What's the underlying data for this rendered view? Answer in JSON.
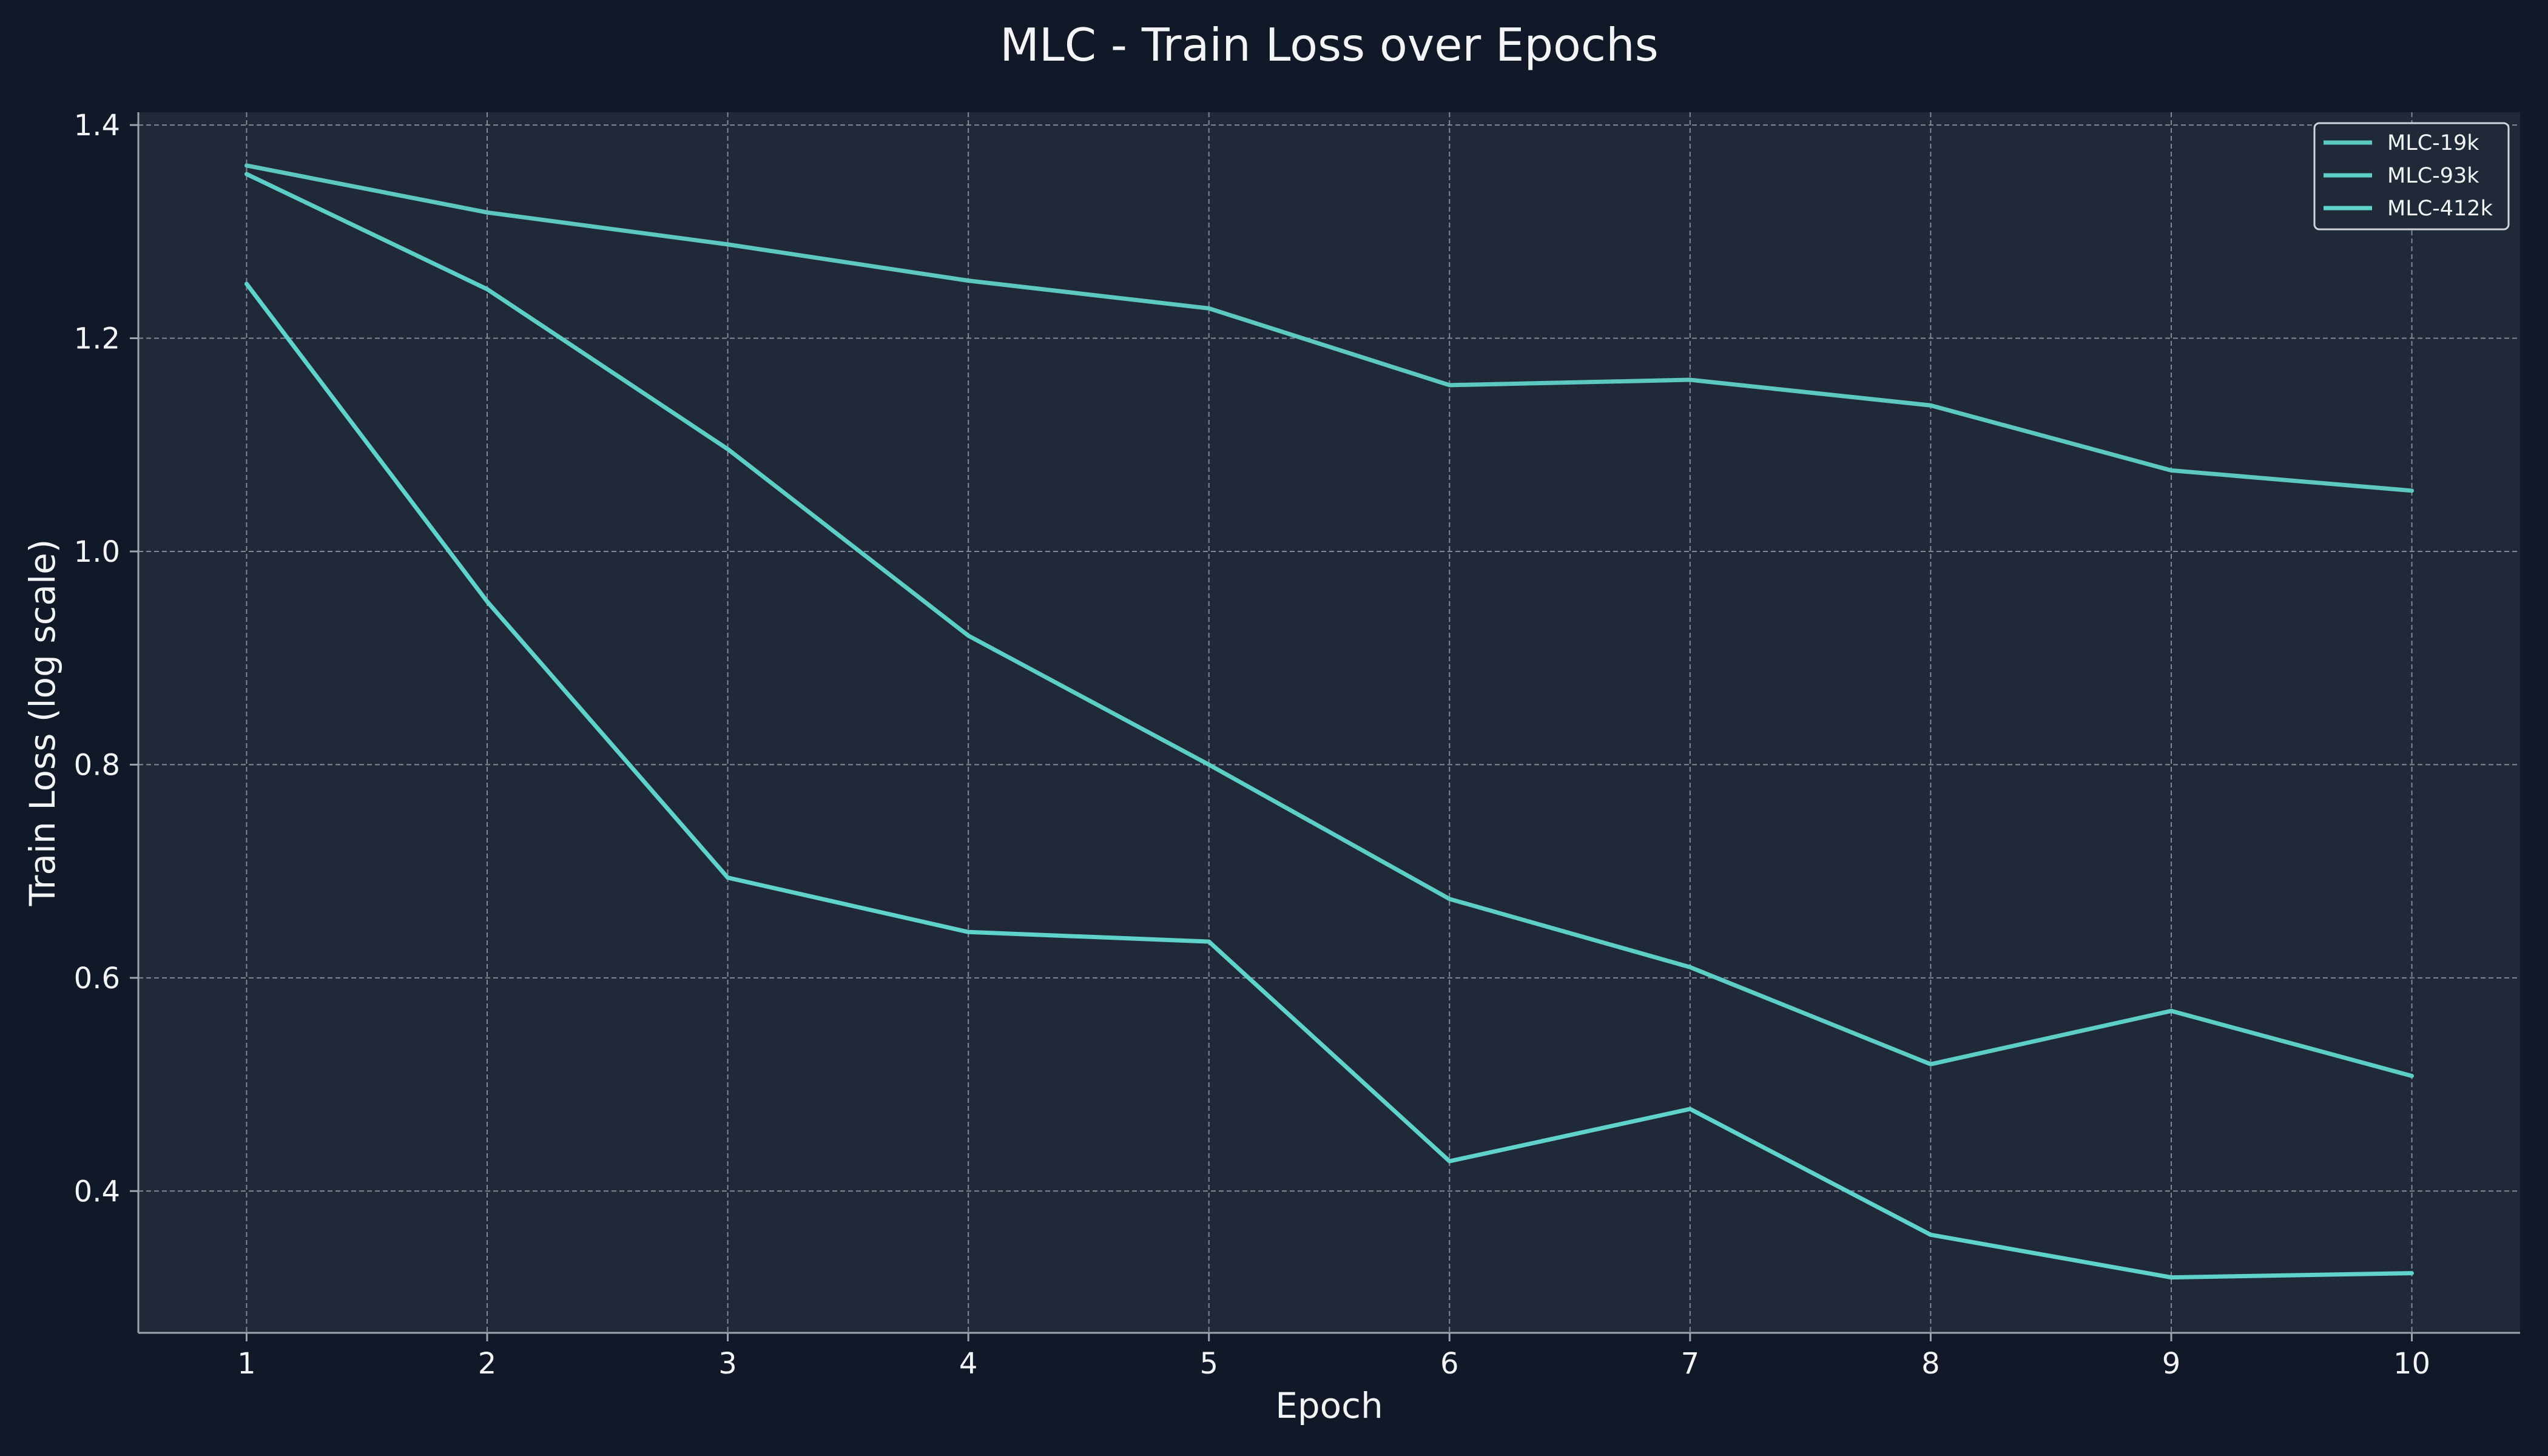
{
  "chart_data": {
    "type": "line",
    "title": "MLC - Train Loss over Epochs",
    "xlabel": "Epoch",
    "ylabel": "Train Loss (log scale)",
    "x": [
      1,
      2,
      3,
      4,
      5,
      6,
      7,
      8,
      9,
      10
    ],
    "x_ticks": [
      "1",
      "2",
      "3",
      "4",
      "5",
      "6",
      "7",
      "8",
      "9",
      "10"
    ],
    "xlim": [
      0.55,
      10.45
    ],
    "ylim": [
      0.267,
      1.412
    ],
    "y_ticks": [
      0.4,
      0.6,
      0.8,
      1.0,
      1.2,
      1.4
    ],
    "y_tick_labels": [
      "0.4",
      "0.6",
      "0.8",
      "1.0",
      "1.2",
      "1.4"
    ],
    "grid": true,
    "legend_position": "top-right",
    "series": [
      {
        "name": "MLC-19k",
        "color": "#5cc8c0",
        "values": [
          1.362,
          1.318,
          1.288,
          1.254,
          1.228,
          1.156,
          1.161,
          1.137,
          1.076,
          1.057
        ]
      },
      {
        "name": "MLC-93k",
        "color": "#5dcec6",
        "values": [
          1.354,
          1.246,
          1.096,
          0.921,
          0.8,
          0.674,
          0.61,
          0.519,
          0.569,
          0.508
        ]
      },
      {
        "name": "MLC-412k",
        "color": "#5fd3cb",
        "values": [
          1.251,
          0.953,
          0.694,
          0.643,
          0.634,
          0.428,
          0.477,
          0.359,
          0.319,
          0.323
        ]
      }
    ]
  }
}
